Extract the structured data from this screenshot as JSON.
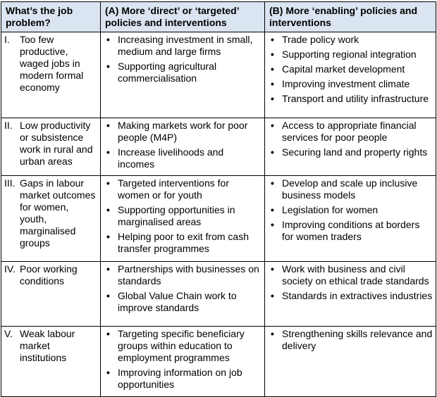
{
  "headers": [
    "What’s the job problem?",
    "(A) More ‘direct’ or ‘targeted’ policies and interventions",
    "(B) More ‘enabling’ policies and interventions"
  ],
  "rows": [
    {
      "numeral": "I.",
      "problem": "Too few productive, waged jobs in modern formal economy",
      "direct": [
        "Increasing investment in small, medium and large firms",
        "Supporting agricultural commercialisation"
      ],
      "enabling": [
        "Trade policy work",
        "Supporting regional integration",
        "Capital market development",
        "Improving investment climate",
        "Transport and utility infrastructure"
      ]
    },
    {
      "numeral": "II.",
      "problem": "Low productivity or subsistence work in rural and urban areas",
      "direct": [
        "Making markets work for poor people (M4P)",
        "Increase livelihoods and incomes"
      ],
      "enabling": [
        "Access to appropriate financial services for poor people",
        "Securing land and property rights"
      ]
    },
    {
      "numeral": "III.",
      "problem": "Gaps in labour market outcomes for women, youth, marginalised groups",
      "direct": [
        "Targeted interventions for women or for youth",
        "Supporting opportunities in marginalised areas",
        "Helping poor to exit from cash transfer programmes"
      ],
      "enabling": [
        "Develop and scale up inclusive business models",
        "Legislation for women",
        "Improving conditions at borders for women traders"
      ]
    },
    {
      "numeral": "IV.",
      "problem": "Poor working conditions",
      "direct": [
        "Partnerships with businesses on standards",
        "Global Value Chain work to improve standards"
      ],
      "enabling": [
        "Work with business and civil society on ethical trade standards",
        "Standards in extractives industries"
      ]
    },
    {
      "numeral": "V.",
      "problem": "Weak labour market institutions",
      "direct": [
        "Targeting specific beneficiary groups within education to employment programmes",
        "Improving information on job opportunities"
      ],
      "enabling": [
        "Strengthening skills relevance and delivery"
      ]
    }
  ],
  "colors": {
    "header_background": "#dbe5f1",
    "border": "#000000",
    "text": "#000000"
  }
}
